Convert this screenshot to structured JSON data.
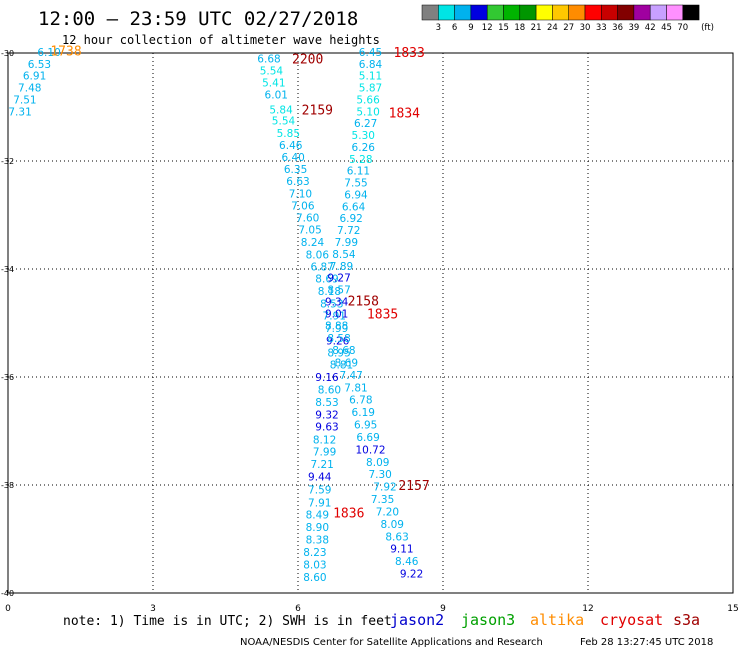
{
  "header": {
    "title": "12:00 – 23:59 UTC 02/27/2018",
    "subtitle": "12 hour collection of altimeter wave heights"
  },
  "color_scale": {
    "ticks": [
      "3",
      "6",
      "9",
      "12",
      "15",
      "18",
      "21",
      "24",
      "27",
      "30",
      "33",
      "36",
      "39",
      "42",
      "45",
      "70"
    ],
    "unit": "(ft)",
    "colors": [
      "#808080",
      "#00e5e5",
      "#00b2ee",
      "#0000e0",
      "#32c832",
      "#00b400",
      "#009600",
      "#ffff00",
      "#ffc800",
      "#ff8c00",
      "#ff0000",
      "#c80000",
      "#820000",
      "#a000a0",
      "#c8a0ff",
      "#ff90ff",
      "#000000"
    ]
  },
  "footer": {
    "note": "note: 1) Time is in UTC; 2) SWH is in feet",
    "credit": "NOAA/NESDIS Center for Satellite Applications and Research",
    "timestamp": "Feb 28 13:27:45 UTC 2018"
  },
  "legend": [
    {
      "name": "jason2",
      "color": "#0000cc"
    },
    {
      "name": "jason3",
      "color": "#00a000"
    },
    {
      "name": "altika",
      "color": "#ff8c00"
    },
    {
      "name": "cryosat",
      "color": "#e00000"
    },
    {
      "name": "s3a",
      "color": "#a00000"
    }
  ],
  "chart_data": {
    "type": "scatter",
    "xlim": [
      0,
      15
    ],
    "ylim": [
      -40,
      -30
    ],
    "x_ticks": [
      "0",
      "3",
      "6",
      "9",
      "12",
      "15"
    ],
    "y_ticks": [
      "-30",
      "-32",
      "-34",
      "-36",
      "-38",
      "-40"
    ],
    "grid": true,
    "time_labels": [
      {
        "text": "1738",
        "x": 1.2,
        "y": -29.95,
        "color": "#ff8c00"
      },
      {
        "text": "2200",
        "x": 6.2,
        "y": -30.1,
        "color": "#a00000"
      },
      {
        "text": "1833",
        "x": 8.3,
        "y": -29.98,
        "color": "#e00000"
      },
      {
        "text": "2159",
        "x": 6.4,
        "y": -31.05,
        "color": "#a00000"
      },
      {
        "text": "1834",
        "x": 8.2,
        "y": -31.1,
        "color": "#e00000"
      },
      {
        "text": "2158",
        "x": 7.35,
        "y": -34.58,
        "color": "#a00000"
      },
      {
        "text": "1835",
        "x": 7.75,
        "y": -34.82,
        "color": "#e00000"
      },
      {
        "text": "2157",
        "x": 8.4,
        "y": -38.0,
        "color": "#a00000"
      },
      {
        "text": "1836",
        "x": 7.05,
        "y": -38.51,
        "color": "#e00000"
      }
    ],
    "series": [
      {
        "name": "altika",
        "points": [
          {
            "x": 0.85,
            "y": -29.98,
            "v": "6.10"
          },
          {
            "x": 0.65,
            "y": -30.2,
            "v": "6.53"
          },
          {
            "x": 0.55,
            "y": -30.42,
            "v": "6.91"
          },
          {
            "x": 0.45,
            "y": -30.64,
            "v": "7.48"
          },
          {
            "x": 0.35,
            "y": -30.86,
            "v": "7.51"
          },
          {
            "x": 0.25,
            "y": -31.08,
            "v": "7.31"
          }
        ]
      },
      {
        "name": "s3a",
        "points": [
          {
            "x": 5.4,
            "y": -30.1,
            "v": "6.68"
          },
          {
            "x": 5.45,
            "y": -30.32,
            "v": "5.54"
          },
          {
            "x": 5.5,
            "y": -30.55,
            "v": "5.41"
          },
          {
            "x": 5.55,
            "y": -30.77,
            "v": "6.01"
          },
          {
            "x": 5.65,
            "y": -31.05,
            "v": "5.84"
          },
          {
            "x": 5.7,
            "y": -31.25,
            "v": "5.54"
          },
          {
            "x": 5.8,
            "y": -31.48,
            "v": "5.85"
          },
          {
            "x": 5.85,
            "y": -31.7,
            "v": "6.46"
          },
          {
            "x": 5.9,
            "y": -31.93,
            "v": "6.40"
          },
          {
            "x": 5.95,
            "y": -32.15,
            "v": "6.35"
          },
          {
            "x": 6.0,
            "y": -32.37,
            "v": "6.63"
          },
          {
            "x": 6.05,
            "y": -32.6,
            "v": "7.10"
          },
          {
            "x": 6.1,
            "y": -32.82,
            "v": "7.06"
          },
          {
            "x": 6.2,
            "y": -33.05,
            "v": "7.60"
          },
          {
            "x": 6.25,
            "y": -33.27,
            "v": "7.05"
          },
          {
            "x": 6.3,
            "y": -33.5,
            "v": "8.24"
          },
          {
            "x": 6.4,
            "y": -33.73,
            "v": "8.06"
          },
          {
            "x": 6.5,
            "y": -33.95,
            "v": "6.87"
          },
          {
            "x": 6.6,
            "y": -34.18,
            "v": "8.69"
          },
          {
            "x": 6.65,
            "y": -34.41,
            "v": "8.18"
          },
          {
            "x": 6.7,
            "y": -34.64,
            "v": "8.53"
          },
          {
            "x": 6.75,
            "y": -34.86,
            "v": "7.91"
          },
          {
            "x": 6.8,
            "y": -35.09,
            "v": "7.99"
          },
          {
            "x": 6.82,
            "y": -35.32,
            "v": "9.26"
          },
          {
            "x": 6.85,
            "y": -35.55,
            "v": "8.95"
          },
          {
            "x": 6.9,
            "y": -35.77,
            "v": "8.81"
          },
          {
            "x": 6.6,
            "y": -36.0,
            "v": "9.16"
          },
          {
            "x": 6.65,
            "y": -36.23,
            "v": "8.60"
          },
          {
            "x": 6.6,
            "y": -36.46,
            "v": "8.53"
          },
          {
            "x": 6.6,
            "y": -36.69,
            "v": "9.32"
          },
          {
            "x": 6.6,
            "y": -36.92,
            "v": "9.63"
          },
          {
            "x": 6.55,
            "y": -37.16,
            "v": "8.12"
          },
          {
            "x": 6.55,
            "y": -37.38,
            "v": "7.99"
          },
          {
            "x": 6.5,
            "y": -37.61,
            "v": "7.21"
          },
          {
            "x": 6.45,
            "y": -37.84,
            "v": "9.44"
          },
          {
            "x": 6.45,
            "y": -38.08,
            "v": "7.59"
          },
          {
            "x": 6.45,
            "y": -38.32,
            "v": "7.91"
          },
          {
            "x": 6.4,
            "y": -38.55,
            "v": "8.49"
          },
          {
            "x": 6.4,
            "y": -38.78,
            "v": "8.90"
          },
          {
            "x": 6.4,
            "y": -39.01,
            "v": "8.38"
          },
          {
            "x": 6.35,
            "y": -39.24,
            "v": "8.23"
          },
          {
            "x": 6.35,
            "y": -39.47,
            "v": "8.03"
          },
          {
            "x": 6.35,
            "y": -39.7,
            "v": "8.60"
          }
        ]
      },
      {
        "name": "cryosat",
        "points": [
          {
            "x": 7.5,
            "y": -29.98,
            "v": "6.45"
          },
          {
            "x": 7.5,
            "y": -30.2,
            "v": "6.84"
          },
          {
            "x": 7.5,
            "y": -30.42,
            "v": "5.11"
          },
          {
            "x": 7.5,
            "y": -30.64,
            "v": "5.87"
          },
          {
            "x": 7.45,
            "y": -30.86,
            "v": "5.66"
          },
          {
            "x": 7.45,
            "y": -31.08,
            "v": "5.10"
          },
          {
            "x": 7.4,
            "y": -31.3,
            "v": "6.27"
          },
          {
            "x": 7.35,
            "y": -31.52,
            "v": "5.30"
          },
          {
            "x": 7.35,
            "y": -31.74,
            "v": "6.26"
          },
          {
            "x": 7.3,
            "y": -31.96,
            "v": "5.28"
          },
          {
            "x": 7.25,
            "y": -32.18,
            "v": "6.11"
          },
          {
            "x": 7.2,
            "y": -32.4,
            "v": "7.55"
          },
          {
            "x": 7.2,
            "y": -32.62,
            "v": "6.94"
          },
          {
            "x": 7.15,
            "y": -32.84,
            "v": "6.64"
          },
          {
            "x": 7.1,
            "y": -33.06,
            "v": "6.92"
          },
          {
            "x": 7.05,
            "y": -33.28,
            "v": "7.72"
          },
          {
            "x": 7.0,
            "y": -33.5,
            "v": "7.99"
          },
          {
            "x": 6.95,
            "y": -33.72,
            "v": "8.54"
          },
          {
            "x": 6.9,
            "y": -33.94,
            "v": "7.89"
          },
          {
            "x": 6.85,
            "y": -34.16,
            "v": "9.27"
          },
          {
            "x": 6.85,
            "y": -34.38,
            "v": "8.57"
          },
          {
            "x": 6.8,
            "y": -34.6,
            "v": "9.34"
          },
          {
            "x": 6.8,
            "y": -34.82,
            "v": "9.01"
          },
          {
            "x": 6.8,
            "y": -35.05,
            "v": "8.88"
          },
          {
            "x": 6.85,
            "y": -35.28,
            "v": "8.58"
          },
          {
            "x": 6.95,
            "y": -35.5,
            "v": "8.68"
          },
          {
            "x": 7.0,
            "y": -35.73,
            "v": "8.69"
          },
          {
            "x": 7.1,
            "y": -35.96,
            "v": "7.47"
          },
          {
            "x": 7.2,
            "y": -36.19,
            "v": "7.81"
          },
          {
            "x": 7.3,
            "y": -36.42,
            "v": "6.78"
          },
          {
            "x": 7.35,
            "y": -36.65,
            "v": "6.19"
          },
          {
            "x": 7.4,
            "y": -36.88,
            "v": "6.95"
          },
          {
            "x": 7.45,
            "y": -37.11,
            "v": "6.69"
          },
          {
            "x": 7.5,
            "y": -37.34,
            "v": "10.72"
          },
          {
            "x": 7.65,
            "y": -37.57,
            "v": "8.09"
          },
          {
            "x": 7.7,
            "y": -37.8,
            "v": "7.30"
          },
          {
            "x": 7.8,
            "y": -38.03,
            "v": "7.92"
          },
          {
            "x": 7.75,
            "y": -38.26,
            "v": "7.35"
          },
          {
            "x": 7.85,
            "y": -38.49,
            "v": "7.20"
          },
          {
            "x": 7.95,
            "y": -38.72,
            "v": "8.09"
          },
          {
            "x": 8.05,
            "y": -38.95,
            "v": "8.63"
          },
          {
            "x": 8.15,
            "y": -39.18,
            "v": "9.11"
          },
          {
            "x": 8.25,
            "y": -39.41,
            "v": "8.46"
          },
          {
            "x": 8.35,
            "y": -39.64,
            "v": "9.22"
          }
        ]
      }
    ]
  }
}
